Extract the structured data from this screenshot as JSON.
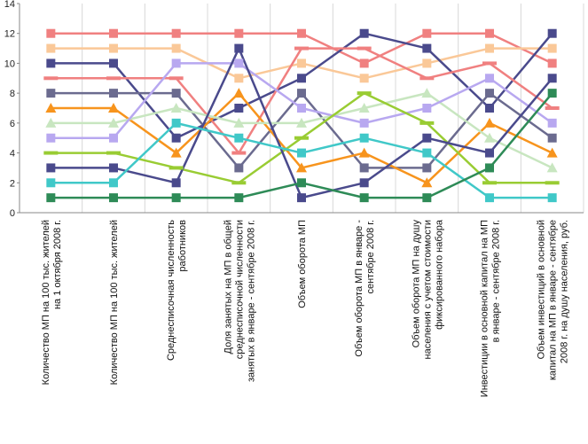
{
  "chart_data": {
    "type": "line",
    "title": "",
    "xlabel": "",
    "ylabel": "",
    "ylim": [
      0,
      14
    ],
    "yticks": [
      0,
      2,
      4,
      6,
      8,
      10,
      12,
      14
    ],
    "grid": "vertical",
    "legend": "none",
    "categories": [
      [
        "Количество МП на 100 тыс. жителей",
        "на 1 октября 2008 г."
      ],
      [
        "Количество МП на 100 тыс. жителей"
      ],
      [
        "Среднесписочная численность",
        "работников"
      ],
      [
        "Доля занятых на МП в общей",
        "среднесписочной численности",
        "занятых в январе - сентябре 2008 г."
      ],
      [
        "Объем оборота МП"
      ],
      [
        "Объем оборота МП в январе -",
        "сентябре 2008 г."
      ],
      [
        "Объем оборота МП на душу",
        "населения с учетом стоимости",
        "фиксированного набора"
      ],
      [
        "Инвестиции в основной капитал на МП",
        "в январе - сентябре 2008 г."
      ],
      [
        "Объем инвестиций в основной",
        "капитал на МП в январе - сентябре",
        "2008 г. на душу населения, руб."
      ]
    ],
    "series": [
      {
        "color": "#F08080",
        "marker": "square",
        "values": [
          12,
          12,
          12,
          12,
          12,
          10,
          12,
          12,
          10
        ]
      },
      {
        "color": "#FAC898",
        "marker": "square",
        "values": [
          11,
          11,
          11,
          9,
          10,
          9,
          10,
          11,
          11
        ]
      },
      {
        "color": "#4A4A8C",
        "marker": "square",
        "values": [
          10,
          10,
          5,
          7,
          9,
          12,
          11,
          7,
          12
        ]
      },
      {
        "color": "#F08080",
        "marker": "dash",
        "values": [
          9,
          9,
          9,
          4,
          11,
          11,
          9,
          10,
          7
        ]
      },
      {
        "color": "#6B6B8F",
        "marker": "square",
        "values": [
          8,
          8,
          8,
          3,
          8,
          3,
          3,
          8,
          5
        ]
      },
      {
        "color": "#F7941D",
        "marker": "triangle",
        "values": [
          7,
          7,
          4,
          8,
          3,
          4,
          2,
          6,
          4
        ]
      },
      {
        "color": "#C8E6C0",
        "marker": "triangle",
        "values": [
          6,
          6,
          7,
          6,
          6,
          7,
          8,
          5,
          3
        ]
      },
      {
        "color": "#B8A8F0",
        "marker": "square",
        "values": [
          5,
          5,
          10,
          10,
          7,
          6,
          7,
          9,
          6
        ]
      },
      {
        "color": "#99CC33",
        "marker": "dash",
        "values": [
          4,
          4,
          3,
          2,
          5,
          8,
          6,
          2,
          2
        ]
      },
      {
        "color": "#4A4A8C",
        "marker": "square",
        "values": [
          3,
          3,
          2,
          11,
          1,
          2,
          5,
          4,
          9
        ]
      },
      {
        "color": "#40C8C8",
        "marker": "square",
        "values": [
          2,
          2,
          6,
          5,
          4,
          5,
          4,
          1,
          1
        ]
      },
      {
        "color": "#2E8B57",
        "marker": "square",
        "values": [
          1,
          1,
          1,
          1,
          2,
          1,
          1,
          3,
          8
        ]
      }
    ]
  }
}
